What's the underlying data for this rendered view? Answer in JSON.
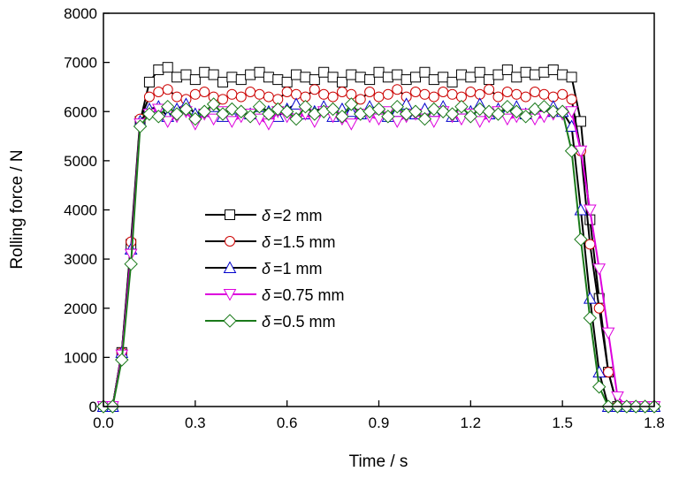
{
  "chart_data": {
    "type": "line",
    "title": "",
    "xlabel": "Time / s",
    "ylabel": "Rolling force / N",
    "xlim": [
      0,
      1.8
    ],
    "ylim": [
      0,
      8000
    ],
    "xticks": [
      "0.0",
      "0.3",
      "0.6",
      "0.9",
      "1.2",
      "1.5",
      "1.8"
    ],
    "yticks": [
      "0",
      "1000",
      "2000",
      "3000",
      "4000",
      "5000",
      "6000",
      "7000",
      "8000"
    ],
    "grid": false,
    "legend_position": "center-left",
    "x_step": 0.03,
    "series": [
      {
        "name": "δ =2 mm",
        "symbol": "δ",
        "label": "=2 mm",
        "marker": "square",
        "color": "#000000",
        "line_color": "#000000",
        "values": [
          0,
          0,
          1100,
          3300,
          5800,
          6600,
          6850,
          6900,
          6700,
          6750,
          6650,
          6800,
          6750,
          6600,
          6700,
          6650,
          6750,
          6800,
          6700,
          6650,
          6600,
          6750,
          6700,
          6650,
          6800,
          6700,
          6600,
          6750,
          6700,
          6650,
          6800,
          6700,
          6750,
          6650,
          6700,
          6800,
          6650,
          6700,
          6600,
          6750,
          6700,
          6800,
          6650,
          6750,
          6850,
          6700,
          6800,
          6750,
          6800,
          6850,
          6750,
          6700,
          5800,
          3800,
          2200,
          700,
          0,
          0,
          0,
          0,
          0
        ]
      },
      {
        "name": "δ =1.5 mm",
        "symbol": "δ",
        "label": "=1.5 mm",
        "marker": "circle",
        "color": "#cc0000",
        "line_color": "#000000",
        "values": [
          0,
          0,
          1100,
          3350,
          5850,
          6300,
          6400,
          6450,
          6300,
          6250,
          6350,
          6400,
          6300,
          6250,
          6350,
          6300,
          6400,
          6350,
          6300,
          6250,
          6400,
          6350,
          6300,
          6450,
          6350,
          6300,
          6400,
          6350,
          6250,
          6400,
          6300,
          6350,
          6450,
          6300,
          6400,
          6350,
          6300,
          6400,
          6350,
          6300,
          6400,
          6350,
          6450,
          6300,
          6400,
          6350,
          6300,
          6400,
          6350,
          6300,
          6350,
          6250,
          5200,
          3300,
          2000,
          700,
          0,
          0,
          0,
          0,
          0
        ]
      },
      {
        "name": "δ =1 mm",
        "symbol": "δ",
        "label": "=1 mm",
        "marker": "triangle-up",
        "color": "#0000cc",
        "line_color": "#000000",
        "values": [
          0,
          0,
          1100,
          3200,
          5800,
          6050,
          6100,
          5900,
          6050,
          6150,
          5950,
          6000,
          6100,
          5900,
          6050,
          6000,
          5950,
          6100,
          6000,
          5900,
          6050,
          6150,
          5950,
          6000,
          6100,
          5900,
          6050,
          6000,
          5950,
          6100,
          6050,
          5900,
          6000,
          6150,
          5950,
          6050,
          6000,
          6100,
          5900,
          6050,
          6000,
          6150,
          5950,
          6050,
          6000,
          6100,
          5950,
          6050,
          6000,
          6100,
          6000,
          5700,
          4000,
          2200,
          700,
          0,
          0,
          0,
          0,
          0,
          0
        ]
      },
      {
        "name": "δ =0.75 mm",
        "symbol": "δ",
        "label": "=0.75 mm",
        "marker": "triangle-down",
        "color": "#dd00dd",
        "line_color": "#dd00dd",
        "values": [
          0,
          0,
          1050,
          3100,
          5750,
          5950,
          6050,
          5800,
          5900,
          6000,
          5750,
          5950,
          5850,
          6000,
          5800,
          5900,
          5950,
          5850,
          5750,
          6000,
          5900,
          5850,
          5950,
          5800,
          6000,
          5900,
          5850,
          5750,
          5950,
          5900,
          5850,
          6000,
          5800,
          5900,
          5950,
          5850,
          5800,
          6000,
          5900,
          5850,
          5950,
          5800,
          5900,
          6000,
          5850,
          5900,
          5950,
          5850,
          5900,
          5950,
          5950,
          6000,
          5200,
          4000,
          2800,
          1500,
          200,
          0,
          0,
          0,
          0
        ]
      },
      {
        "name": "δ =0.5 mm",
        "symbol": "δ",
        "label": "=0.5 mm",
        "marker": "diamond",
        "color": "#1a7a1a",
        "line_color": "#1a7a1a",
        "values": [
          0,
          0,
          950,
          2900,
          5700,
          5950,
          5900,
          6100,
          5950,
          6050,
          5850,
          6000,
          6150,
          5950,
          6050,
          6000,
          5900,
          6100,
          5950,
          6050,
          6000,
          5850,
          6100,
          5950,
          6000,
          6050,
          5900,
          6150,
          5950,
          6000,
          6050,
          5900,
          6100,
          5950,
          6000,
          5850,
          6050,
          6000,
          5950,
          6100,
          5900,
          6050,
          6000,
          5950,
          6100,
          6000,
          5900,
          6050,
          6100,
          6000,
          6000,
          5200,
          3400,
          1800,
          400,
          0,
          0,
          0,
          0,
          0,
          0
        ]
      }
    ]
  }
}
